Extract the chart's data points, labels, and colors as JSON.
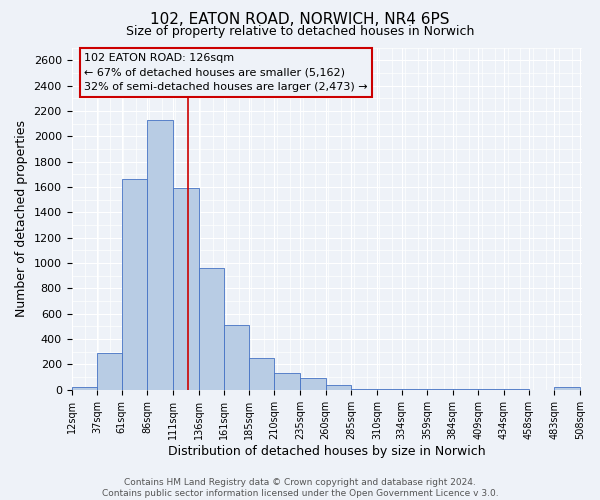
{
  "title": "102, EATON ROAD, NORWICH, NR4 6PS",
  "subtitle": "Size of property relative to detached houses in Norwich",
  "xlabel": "Distribution of detached houses by size in Norwich",
  "ylabel": "Number of detached properties",
  "footer_line1": "Contains HM Land Registry data © Crown copyright and database right 2024.",
  "footer_line2": "Contains public sector information licensed under the Open Government Licence v 3.0.",
  "annotation_title": "102 EATON ROAD: 126sqm",
  "annotation_line2": "← 67% of detached houses are smaller (5,162)",
  "annotation_line3": "32% of semi-detached houses are larger (2,473) →",
  "bar_left_edges": [
    12,
    37,
    61,
    86,
    111,
    136,
    161,
    185,
    210,
    235,
    260,
    285,
    310,
    334,
    359,
    384,
    409,
    434,
    458,
    483
  ],
  "bar_widths": [
    25,
    24,
    25,
    25,
    25,
    25,
    24,
    25,
    25,
    25,
    25,
    25,
    24,
    25,
    25,
    25,
    25,
    24,
    25,
    25
  ],
  "bar_heights": [
    20,
    290,
    1660,
    2130,
    1590,
    960,
    510,
    250,
    130,
    95,
    35,
    10,
    5,
    5,
    5,
    5,
    5,
    3,
    2,
    20
  ],
  "bar_color": "#b8cce4",
  "bar_edge_color": "#4472c4",
  "vline_x": 126,
  "vline_color": "#cc0000",
  "ylim": [
    0,
    2700
  ],
  "yticks": [
    0,
    200,
    400,
    600,
    800,
    1000,
    1200,
    1400,
    1600,
    1800,
    2000,
    2200,
    2400,
    2600
  ],
  "xtick_labels": [
    "12sqm",
    "37sqm",
    "61sqm",
    "86sqm",
    "111sqm",
    "136sqm",
    "161sqm",
    "185sqm",
    "210sqm",
    "235sqm",
    "260sqm",
    "285sqm",
    "310sqm",
    "334sqm",
    "359sqm",
    "384sqm",
    "409sqm",
    "434sqm",
    "458sqm",
    "483sqm",
    "508sqm"
  ],
  "xtick_positions": [
    12,
    37,
    61,
    86,
    111,
    136,
    161,
    185,
    210,
    235,
    260,
    285,
    310,
    334,
    359,
    384,
    409,
    434,
    458,
    483,
    508
  ],
  "box_color": "#cc0000",
  "bg_color": "#eef2f8",
  "grid_color": "#ffffff",
  "title_fontsize": 11,
  "subtitle_fontsize": 9,
  "annotation_fontsize": 8,
  "xlabel_fontsize": 9,
  "ylabel_fontsize": 9,
  "xtick_fontsize": 7,
  "ytick_fontsize": 8,
  "footer_fontsize": 6.5
}
